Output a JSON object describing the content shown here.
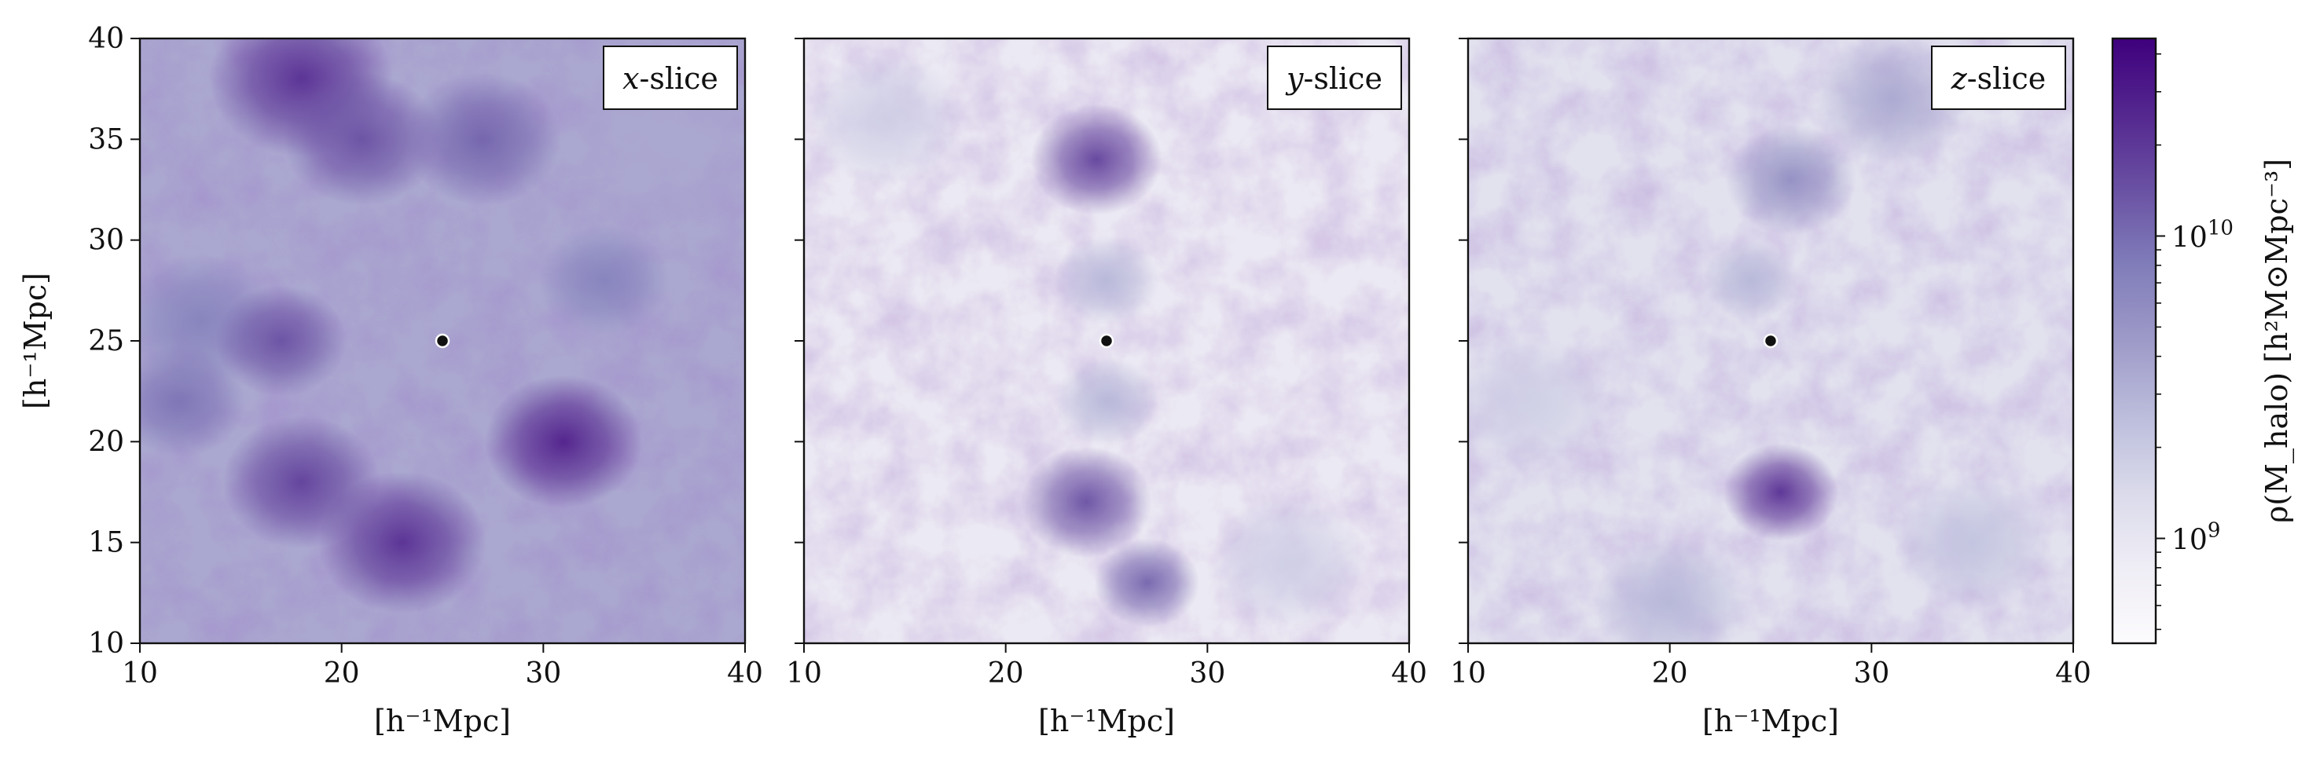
{
  "colors": {
    "cmap": [
      "#fcfbfd",
      "#efedf5",
      "#dadaeb",
      "#bcbddc",
      "#9e9ac8",
      "#807dba",
      "#6a51a3",
      "#54278f",
      "#3f007d"
    ],
    "marker_fill": "#111111",
    "marker_edge": "#ffffff"
  },
  "chart_data": [
    {
      "type": "heatmap",
      "panel_label_var": "x",
      "panel_label_rest": "-slice",
      "xlabel": "[h⁻¹Mpc]",
      "ylabel": "[h⁻¹Mpc]",
      "xlim": [
        10,
        40
      ],
      "ylim": [
        10,
        40
      ],
      "xticks": [
        10,
        20,
        30,
        40
      ],
      "yticks": [
        10,
        15,
        20,
        25,
        30,
        35,
        40
      ],
      "marker": {
        "x": 25,
        "y": 25
      },
      "density_clumps": [
        {
          "x": 18,
          "y": 38,
          "level": 0.85,
          "spread": 3.5
        },
        {
          "x": 21,
          "y": 35,
          "level": 0.75,
          "spread": 3.0
        },
        {
          "x": 27,
          "y": 35,
          "level": 0.7,
          "spread": 3.0
        },
        {
          "x": 13,
          "y": 26,
          "level": 0.6,
          "spread": 3.0
        },
        {
          "x": 17,
          "y": 25,
          "level": 0.75,
          "spread": 2.5
        },
        {
          "x": 18,
          "y": 18,
          "level": 0.8,
          "spread": 3.0
        },
        {
          "x": 23,
          "y": 15,
          "level": 0.85,
          "spread": 3.2
        },
        {
          "x": 31,
          "y": 20,
          "level": 0.9,
          "spread": 3.0
        },
        {
          "x": 33,
          "y": 28,
          "level": 0.6,
          "spread": 2.5
        },
        {
          "x": 12,
          "y": 22,
          "level": 0.65,
          "spread": 2.5
        },
        {
          "x": 36,
          "y": 35,
          "level": 0.45,
          "spread": 4.0
        }
      ],
      "background_level": 0.45
    },
    {
      "type": "heatmap",
      "panel_label_var": "y",
      "panel_label_rest": "-slice",
      "xlabel": "[h⁻¹Mpc]",
      "ylabel": "",
      "xlim": [
        10,
        40
      ],
      "ylim": [
        10,
        40
      ],
      "xticks": [
        10,
        20,
        30,
        40
      ],
      "yticks": [
        10,
        15,
        20,
        25,
        30,
        35,
        40
      ],
      "marker": {
        "x": 25,
        "y": 25
      },
      "density_clumps": [
        {
          "x": 24.5,
          "y": 34,
          "level": 0.8,
          "spread": 2.5
        },
        {
          "x": 24,
          "y": 17,
          "level": 0.75,
          "spread": 2.5
        },
        {
          "x": 27,
          "y": 13,
          "level": 0.7,
          "spread": 2.0
        },
        {
          "x": 25,
          "y": 28,
          "level": 0.4,
          "spread": 2.0
        },
        {
          "x": 25,
          "y": 22,
          "level": 0.4,
          "spread": 2.0
        },
        {
          "x": 14,
          "y": 36,
          "level": 0.3,
          "spread": 3.0
        },
        {
          "x": 34,
          "y": 14,
          "level": 0.3,
          "spread": 3.0
        }
      ],
      "background_level": 0.15
    },
    {
      "type": "heatmap",
      "panel_label_var": "z",
      "panel_label_rest": "-slice",
      "xlabel": "[h⁻¹Mpc]",
      "ylabel": "",
      "xlim": [
        10,
        40
      ],
      "ylim": [
        10,
        40
      ],
      "xticks": [
        10,
        20,
        30,
        40
      ],
      "yticks": [
        10,
        15,
        20,
        25,
        30,
        35,
        40
      ],
      "marker": {
        "x": 25,
        "y": 25
      },
      "density_clumps": [
        {
          "x": 25.5,
          "y": 17.5,
          "level": 0.85,
          "spread": 2.2
        },
        {
          "x": 26,
          "y": 33,
          "level": 0.55,
          "spread": 2.5
        },
        {
          "x": 31,
          "y": 37,
          "level": 0.45,
          "spread": 3.0
        },
        {
          "x": 24,
          "y": 28,
          "level": 0.4,
          "spread": 1.8
        },
        {
          "x": 20,
          "y": 12,
          "level": 0.4,
          "spread": 3.0
        },
        {
          "x": 35,
          "y": 15,
          "level": 0.35,
          "spread": 3.0
        },
        {
          "x": 13,
          "y": 22,
          "level": 0.3,
          "spread": 3.0
        }
      ],
      "background_level": 0.2
    }
  ],
  "colorbar": {
    "label": "ρ(M_halo)  [h²M⊙Mpc⁻³]",
    "scale": "log",
    "vmin": 450000000.0,
    "vmax": 45000000000.0,
    "ticks": [
      {
        "value": 1000000000.0,
        "mantissa": "10",
        "exponent": "9"
      },
      {
        "value": 10000000000.0,
        "mantissa": "10",
        "exponent": "10"
      }
    ]
  }
}
